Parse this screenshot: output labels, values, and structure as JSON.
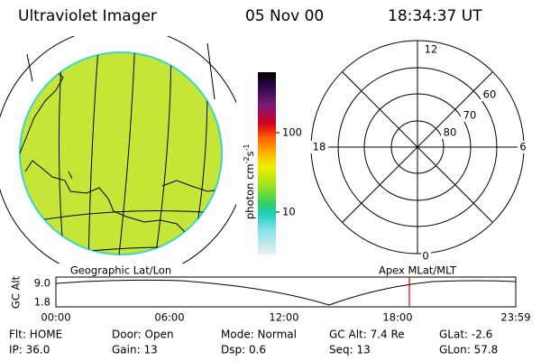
{
  "header": {
    "title": "Ultraviolet Imager",
    "date": "05 Nov 00",
    "time": "18:34:37 UT"
  },
  "colorbar": {
    "unit": "photon cm",
    "exp1": "-2",
    "unit2": "s",
    "exp2": "-1",
    "ticks": [
      "100",
      "10"
    ]
  },
  "polar": {
    "mlt": [
      "12",
      "18",
      "6",
      "0"
    ],
    "mlat": [
      "60",
      "70",
      "80"
    ]
  },
  "captions": {
    "left": "Geographic Lat/Lon",
    "right": "Apex MLat/MLT"
  },
  "altitude": {
    "ylabel": "GC Alt",
    "yticks": [
      "9.0",
      "1.8"
    ],
    "xticks": [
      "00:00",
      "06:00",
      "12:00",
      "18:00",
      "23:59"
    ]
  },
  "status": [
    [
      "Flt: HOME",
      "Door: Open",
      "Mode: Normal",
      "GC Alt: 7.4 Re",
      "GLat: -2.6"
    ],
    [
      "IP: 36.0",
      "Gain: 13",
      "Dsp:    0.6",
      "Seq: 13",
      "GLon: 57.8"
    ]
  ]
}
